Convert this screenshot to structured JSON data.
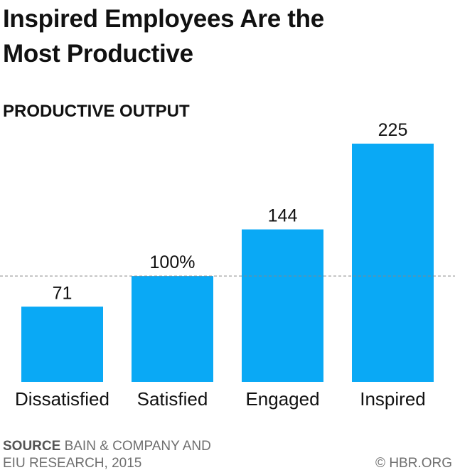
{
  "title_line1": "Inspired Employees Are the",
  "title_line2": "Most Productive",
  "subtitle": "PRODUCTIVE OUTPUT",
  "footer": {
    "source_label": "SOURCE",
    "source_line1": "BAIN & COMPANY AND",
    "source_line2": "EIU RESEARCH, 2015",
    "copyright": "© HBR.ORG"
  },
  "colors": {
    "bar": "#0aa9f5",
    "reference_line": "#888888",
    "text": "#111111"
  },
  "chart_data": {
    "type": "bar",
    "title": "PRODUCTIVE OUTPUT",
    "categories": [
      "Dissatisfied",
      "Satisfied",
      "Engaged",
      "Inspired"
    ],
    "values": [
      71,
      100,
      144,
      225
    ],
    "value_labels": [
      "71",
      "100%",
      "144",
      "225"
    ],
    "reference_line": 100,
    "ylim": [
      0,
      225
    ],
    "xlabel": "",
    "ylabel": "",
    "grid": false
  }
}
